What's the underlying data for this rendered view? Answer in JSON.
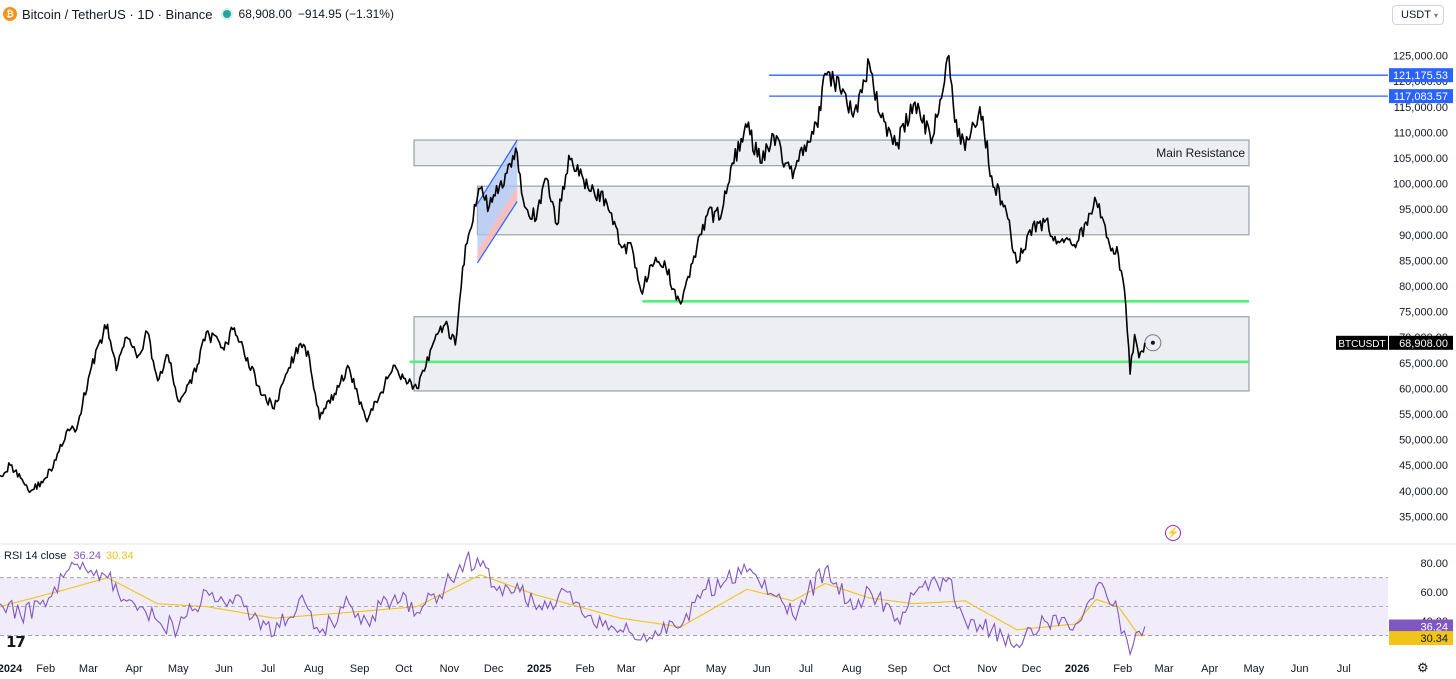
{
  "header": {
    "logo": "btc-logo-icon",
    "title": "Bitcoin / TetherUS · 1D · Binance",
    "price": "68,908.00",
    "change": "−914.95 (−1.31%)"
  },
  "currency_selector": "USDT",
  "price_label": {
    "symbol": "BTCUSDT",
    "value": "68,908.00"
  },
  "level_labels": {
    "upper": "121,175.53",
    "lower": "117,083.57"
  },
  "zone_label": "Main Resistance",
  "rsi": {
    "label": "RSI 14 close",
    "value": "36.24",
    "ma_value": "30.34"
  },
  "colors": {
    "price_line": "#000000",
    "level_line": "#2962ff",
    "support_line": "#52f07b",
    "zone_fill": "#eceef1",
    "zone_border": "#9aa1ac",
    "rsi_line": "#7e57c2",
    "rsi_ma": "#f0c419",
    "rsi_band": "#f1ecf9"
  },
  "chart_data": {
    "type": "line",
    "title": "Bitcoin / TetherUS · 1D · Binance",
    "ylim": [
      30000,
      130000
    ],
    "y_ticks": [
      35000,
      40000,
      45000,
      50000,
      55000,
      60000,
      65000,
      70000,
      75000,
      80000,
      85000,
      90000,
      95000,
      100000,
      105000,
      110000,
      115000,
      120000,
      125000
    ],
    "x_tick_labels": [
      "2024",
      "Feb",
      "Mar",
      "Apr",
      "May",
      "Jun",
      "Jul",
      "Aug",
      "Sep",
      "Oct",
      "Nov",
      "Dec",
      "2025",
      "Feb",
      "Mar",
      "Apr",
      "May",
      "Jun",
      "Jul",
      "Aug",
      "Sep",
      "Oct",
      "Nov",
      "Dec",
      "2026",
      "Feb",
      "Mar",
      "Apr",
      "May",
      "Jun",
      "Jul"
    ],
    "x_range": [
      "2024-01-01",
      "2026-07-31"
    ],
    "series": [
      {
        "values": [
          [
            "2024-01-01",
            43000
          ],
          [
            "2024-01-08",
            45000
          ],
          [
            "2024-01-15",
            42500
          ],
          [
            "2024-01-22",
            40000
          ],
          [
            "2024-02-01",
            42500
          ],
          [
            "2024-02-08",
            46000
          ],
          [
            "2024-02-15",
            51500
          ],
          [
            "2024-02-22",
            52000
          ],
          [
            "2024-03-01",
            62000
          ],
          [
            "2024-03-07",
            68000
          ],
          [
            "2024-03-14",
            72500
          ],
          [
            "2024-03-20",
            63500
          ],
          [
            "2024-03-27",
            70000
          ],
          [
            "2024-04-03",
            66000
          ],
          [
            "2024-04-10",
            71000
          ],
          [
            "2024-04-17",
            61500
          ],
          [
            "2024-04-24",
            66500
          ],
          [
            "2024-05-01",
            57500
          ],
          [
            "2024-05-10",
            61000
          ],
          [
            "2024-05-20",
            71000
          ],
          [
            "2024-06-01",
            67500
          ],
          [
            "2024-06-07",
            71500
          ],
          [
            "2024-06-17",
            66000
          ],
          [
            "2024-06-24",
            60500
          ],
          [
            "2024-07-05",
            56000
          ],
          [
            "2024-07-15",
            64000
          ],
          [
            "2024-07-22",
            68500
          ],
          [
            "2024-07-29",
            66000
          ],
          [
            "2024-08-05",
            54000
          ],
          [
            "2024-08-15",
            59000
          ],
          [
            "2024-08-25",
            64000
          ],
          [
            "2024-09-06",
            53500
          ],
          [
            "2024-09-15",
            59000
          ],
          [
            "2024-09-25",
            64500
          ],
          [
            "2024-10-01",
            62000
          ],
          [
            "2024-10-10",
            60000
          ],
          [
            "2024-10-20",
            68000
          ],
          [
            "2024-10-29",
            72500
          ],
          [
            "2024-11-05",
            68500
          ],
          [
            "2024-11-12",
            88000
          ],
          [
            "2024-11-22",
            99000
          ],
          [
            "2024-11-28",
            95500
          ],
          [
            "2024-12-05",
            99500
          ],
          [
            "2024-12-17",
            106000
          ],
          [
            "2024-12-22",
            95500
          ],
          [
            "2024-12-30",
            93000
          ],
          [
            "2025-01-06",
            101000
          ],
          [
            "2025-01-13",
            92000
          ],
          [
            "2025-01-21",
            105500
          ],
          [
            "2025-01-28",
            101500
          ],
          [
            "2025-02-05",
            98500
          ],
          [
            "2025-02-15",
            97000
          ],
          [
            "2025-02-25",
            88000
          ],
          [
            "2025-03-05",
            87500
          ],
          [
            "2025-03-11",
            79000
          ],
          [
            "2025-03-20",
            84500
          ],
          [
            "2025-03-28",
            83500
          ],
          [
            "2025-04-07",
            76500
          ],
          [
            "2025-04-15",
            84500
          ],
          [
            "2025-04-24",
            93500
          ],
          [
            "2025-05-05",
            94500
          ],
          [
            "2025-05-12",
            104000
          ],
          [
            "2025-05-22",
            111000
          ],
          [
            "2025-06-01",
            104000
          ],
          [
            "2025-06-09",
            109500
          ],
          [
            "2025-06-22",
            101000
          ],
          [
            "2025-06-30",
            107500
          ],
          [
            "2025-07-09",
            111000
          ],
          [
            "2025-07-14",
            121500
          ],
          [
            "2025-07-24",
            118500
          ],
          [
            "2025-08-02",
            113000
          ],
          [
            "2025-08-13",
            123500
          ],
          [
            "2025-08-20",
            113500
          ],
          [
            "2025-09-01",
            108000
          ],
          [
            "2025-09-12",
            115500
          ],
          [
            "2025-09-25",
            109000
          ],
          [
            "2025-10-06",
            125000
          ],
          [
            "2025-10-10",
            112000
          ],
          [
            "2025-10-17",
            106500
          ],
          [
            "2025-10-27",
            115000
          ],
          [
            "2025-11-04",
            101500
          ],
          [
            "2025-11-14",
            94500
          ],
          [
            "2025-11-21",
            84500
          ],
          [
            "2025-12-02",
            92000
          ],
          [
            "2025-12-10",
            92500
          ],
          [
            "2025-12-20",
            88500
          ],
          [
            "2025-12-31",
            87500
          ],
          [
            "2026-01-07",
            92500
          ],
          [
            "2026-01-14",
            96500
          ],
          [
            "2026-01-21",
            89500
          ],
          [
            "2026-01-29",
            86000
          ],
          [
            "2026-02-03",
            76500
          ],
          [
            "2026-02-06",
            62800
          ],
          [
            "2026-02-09",
            70500
          ],
          [
            "2026-02-12",
            66000
          ],
          [
            "2026-02-16",
            68908
          ]
        ]
      }
    ],
    "horizontal_levels": [
      121175.53,
      117083.57,
      77000,
      65200
    ],
    "zones": [
      {
        "label": "Main Resistance",
        "from": 103500,
        "to": 108500
      },
      {
        "from": 90000,
        "to": 99500
      },
      {
        "from": 59500,
        "to": 74000
      }
    ],
    "rsi": {
      "ylim": [
        20,
        85
      ],
      "y_ticks": [
        40,
        60,
        80
      ],
      "band": [
        30,
        70
      ],
      "values": [
        [
          "2024-01-01",
          52
        ],
        [
          "2024-01-15",
          44
        ],
        [
          "2024-02-01",
          50
        ],
        [
          "2024-02-15",
          74
        ],
        [
          "2024-02-28",
          76
        ],
        [
          "2024-03-14",
          70
        ],
        [
          "2024-03-25",
          55
        ],
        [
          "2024-04-05",
          50
        ],
        [
          "2024-04-17",
          40
        ],
        [
          "2024-05-01",
          35
        ],
        [
          "2024-05-20",
          61
        ],
        [
          "2024-06-05",
          55
        ],
        [
          "2024-06-24",
          42
        ],
        [
          "2024-07-05",
          30
        ],
        [
          "2024-07-22",
          55
        ],
        [
          "2024-08-05",
          32
        ],
        [
          "2024-08-25",
          52
        ],
        [
          "2024-09-06",
          40
        ],
        [
          "2024-09-25",
          58
        ],
        [
          "2024-10-10",
          46
        ],
        [
          "2024-10-29",
          64
        ],
        [
          "2024-11-12",
          82
        ],
        [
          "2024-11-22",
          78
        ],
        [
          "2024-12-05",
          64
        ],
        [
          "2024-12-17",
          66
        ],
        [
          "2024-12-30",
          48
        ],
        [
          "2025-01-20",
          60
        ],
        [
          "2025-02-05",
          44
        ],
        [
          "2025-02-25",
          34
        ],
        [
          "2025-03-11",
          27
        ],
        [
          "2025-04-07",
          36
        ],
        [
          "2025-04-24",
          62
        ],
        [
          "2025-05-22",
          74
        ],
        [
          "2025-06-09",
          58
        ],
        [
          "2025-06-22",
          44
        ],
        [
          "2025-07-14",
          76
        ],
        [
          "2025-08-02",
          48
        ],
        [
          "2025-08-13",
          62
        ],
        [
          "2025-09-01",
          42
        ],
        [
          "2025-09-12",
          58
        ],
        [
          "2025-10-06",
          70
        ],
        [
          "2025-10-17",
          40
        ],
        [
          "2025-11-04",
          34
        ],
        [
          "2025-11-21",
          24
        ],
        [
          "2025-12-10",
          40
        ],
        [
          "2025-12-31",
          38
        ],
        [
          "2026-01-14",
          64
        ],
        [
          "2026-01-29",
          45
        ],
        [
          "2026-02-06",
          17
        ],
        [
          "2026-02-12",
          33
        ],
        [
          "2026-02-16",
          36.24
        ]
      ],
      "ma_values": [
        [
          "2024-01-01",
          50
        ],
        [
          "2024-02-15",
          62
        ],
        [
          "2024-03-14",
          70
        ],
        [
          "2024-04-17",
          52
        ],
        [
          "2024-05-20",
          50
        ],
        [
          "2024-07-05",
          42
        ],
        [
          "2024-08-25",
          46
        ],
        [
          "2024-10-10",
          50
        ],
        [
          "2024-11-22",
          72
        ],
        [
          "2024-12-30",
          58
        ],
        [
          "2025-02-25",
          42
        ],
        [
          "2025-04-07",
          36
        ],
        [
          "2025-05-22",
          62
        ],
        [
          "2025-06-22",
          54
        ],
        [
          "2025-07-14",
          66
        ],
        [
          "2025-08-13",
          56
        ],
        [
          "2025-09-12",
          52
        ],
        [
          "2025-10-17",
          54
        ],
        [
          "2025-11-21",
          34
        ],
        [
          "2025-12-31",
          38
        ],
        [
          "2026-01-14",
          55
        ],
        [
          "2026-01-29",
          50
        ],
        [
          "2026-02-12",
          30
        ],
        [
          "2026-02-16",
          30.34
        ]
      ]
    }
  }
}
